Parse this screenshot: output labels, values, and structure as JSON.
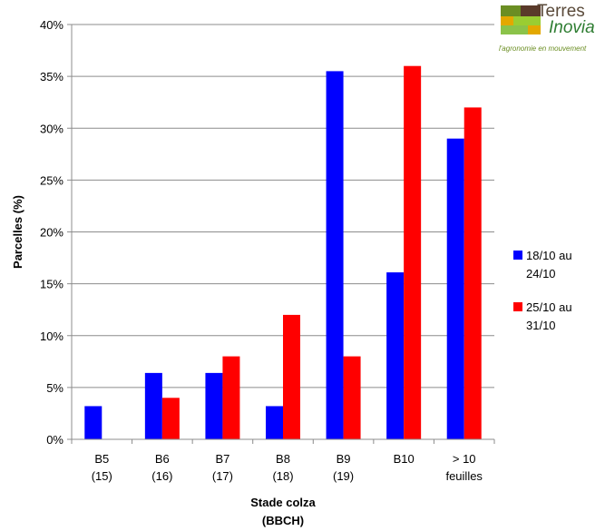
{
  "logo": {
    "name": "Terres",
    "name2": "Inovia",
    "tagline": "l'agronomie en mouvement"
  },
  "chart_data": {
    "type": "bar",
    "title": "",
    "xlabel_line1": "Stade colza",
    "xlabel_line2": "(BBCH)",
    "ylabel": "Parcelles (%)",
    "ylim": [
      0,
      40
    ],
    "yticks": [
      0,
      5,
      10,
      15,
      20,
      25,
      30,
      35,
      40
    ],
    "ytick_suffix": "%",
    "grid": true,
    "legend_position": "right",
    "categories": [
      [
        "B5",
        "(15)"
      ],
      [
        "B6",
        "(16)"
      ],
      [
        "B7",
        "(17)"
      ],
      [
        "B8",
        "(18)"
      ],
      [
        "B9",
        "(19)"
      ],
      [
        "B10",
        ""
      ],
      [
        "> 10",
        "feuilles"
      ]
    ],
    "series": [
      {
        "name": "18/10 au 24/10",
        "legend_lines": [
          "18/10 au",
          "24/10"
        ],
        "color": "#0000ff",
        "values": [
          3.2,
          6.4,
          6.4,
          3.2,
          35.5,
          16.1,
          29.0
        ]
      },
      {
        "name": "25/10 au 31/10",
        "legend_lines": [
          "25/10 au",
          "31/10"
        ],
        "color": "#ff0000",
        "values": [
          0,
          4,
          8,
          12,
          8,
          36,
          32
        ]
      }
    ]
  }
}
